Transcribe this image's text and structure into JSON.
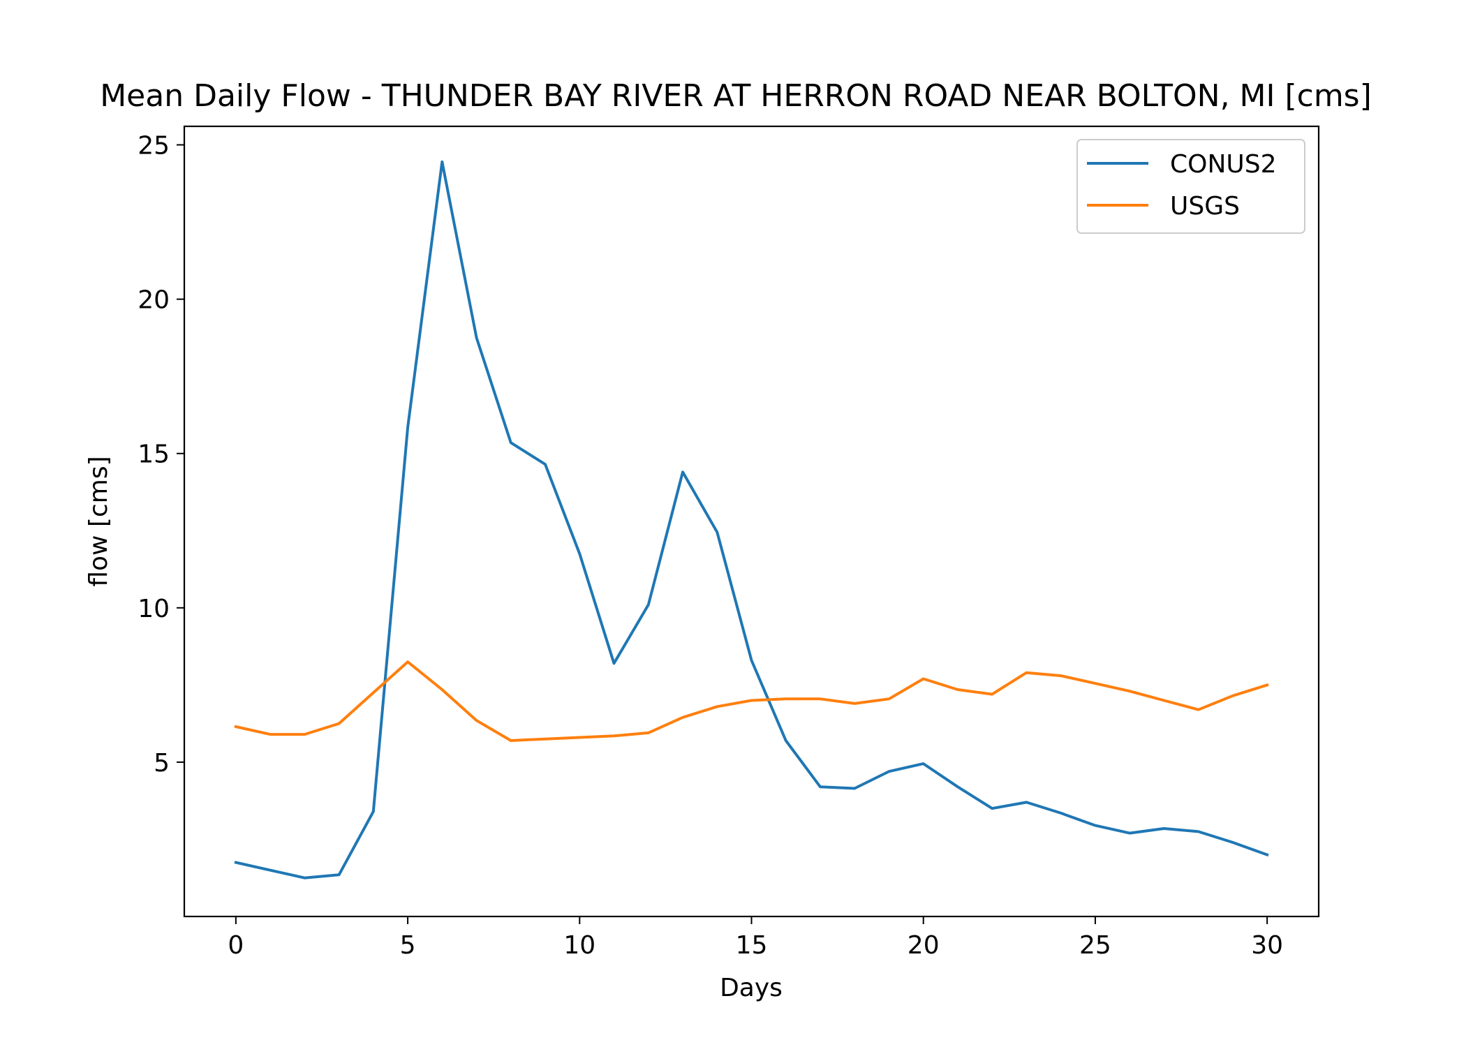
{
  "chart_data": {
    "type": "line",
    "title": "Mean Daily Flow - THUNDER BAY RIVER AT HERRON ROAD NEAR BOLTON, MI [cms]",
    "xlabel": "Days",
    "ylabel": "flow [cms]",
    "xlim": [
      -1.5,
      31.5
    ],
    "ylim": [
      0.0,
      25.6
    ],
    "x_ticks": [
      0,
      5,
      10,
      15,
      20,
      25,
      30
    ],
    "y_ticks": [
      5,
      10,
      15,
      20,
      25
    ],
    "grid": false,
    "legend_position": "top-right",
    "x": [
      0,
      1,
      2,
      3,
      4,
      5,
      6,
      7,
      8,
      9,
      10,
      11,
      12,
      13,
      14,
      15,
      16,
      17,
      18,
      19,
      20,
      21,
      22,
      23,
      24,
      25,
      26,
      27,
      28,
      29,
      30
    ],
    "series": [
      {
        "name": "CONUS2",
        "color": "#1f77b4",
        "values": [
          1.75,
          1.5,
          1.25,
          1.35,
          3.4,
          15.85,
          24.45,
          18.75,
          15.35,
          14.65,
          11.75,
          8.2,
          10.1,
          14.4,
          12.45,
          8.3,
          5.7,
          4.2,
          4.15,
          4.7,
          4.95,
          4.2,
          3.5,
          3.7,
          3.35,
          2.95,
          2.7,
          2.85,
          2.75,
          2.4,
          2.0
        ]
      },
      {
        "name": "USGS",
        "color": "#ff7f0e",
        "values": [
          6.15,
          5.9,
          5.9,
          6.25,
          7.25,
          8.25,
          7.35,
          6.35,
          5.7,
          5.75,
          5.8,
          5.85,
          5.95,
          6.45,
          6.8,
          7.0,
          7.05,
          7.05,
          6.9,
          7.05,
          7.7,
          7.35,
          7.2,
          7.9,
          7.8,
          7.55,
          7.3,
          7.0,
          6.7,
          7.15,
          7.5
        ]
      }
    ]
  }
}
